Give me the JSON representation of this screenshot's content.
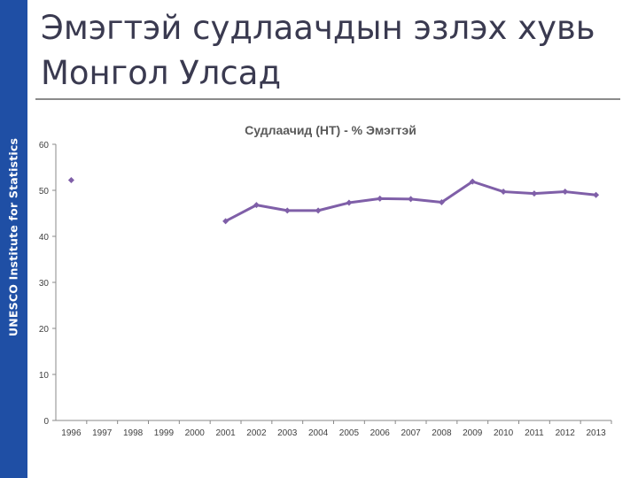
{
  "sidebar": {
    "text": "UNESCO Institute for Statistics"
  },
  "slide": {
    "title_line1": "Эмэгтэй судлаачдын эзлэх хувь",
    "title_line2": "Монгол Улсад"
  },
  "colors": {
    "sidebar": "#1f4fa5",
    "series": "#7f5fa8",
    "axis": "#888888",
    "title_rule": "#8b8b8b"
  },
  "chart_data": {
    "type": "line",
    "title": "Судлаачид (НТ) - % Эмэгтэй",
    "xlabel": "",
    "ylabel": "",
    "categories": [
      "1996",
      "1997",
      "1998",
      "1999",
      "2000",
      "2001",
      "2002",
      "2003",
      "2004",
      "2005",
      "2006",
      "2007",
      "2008",
      "2009",
      "2010",
      "2011",
      "2012",
      "2013"
    ],
    "series": [
      {
        "values": [
          52.2,
          null,
          null,
          null,
          null,
          43.3,
          46.8,
          45.6,
          45.6,
          47.3,
          48.2,
          48.1,
          47.4,
          51.9,
          49.7,
          49.3,
          49.7,
          49.0
        ]
      }
    ],
    "ylim": [
      0,
      60
    ],
    "yticks": [
      0,
      10,
      20,
      30,
      40,
      50,
      60
    ],
    "grid": false,
    "legend": "none"
  }
}
